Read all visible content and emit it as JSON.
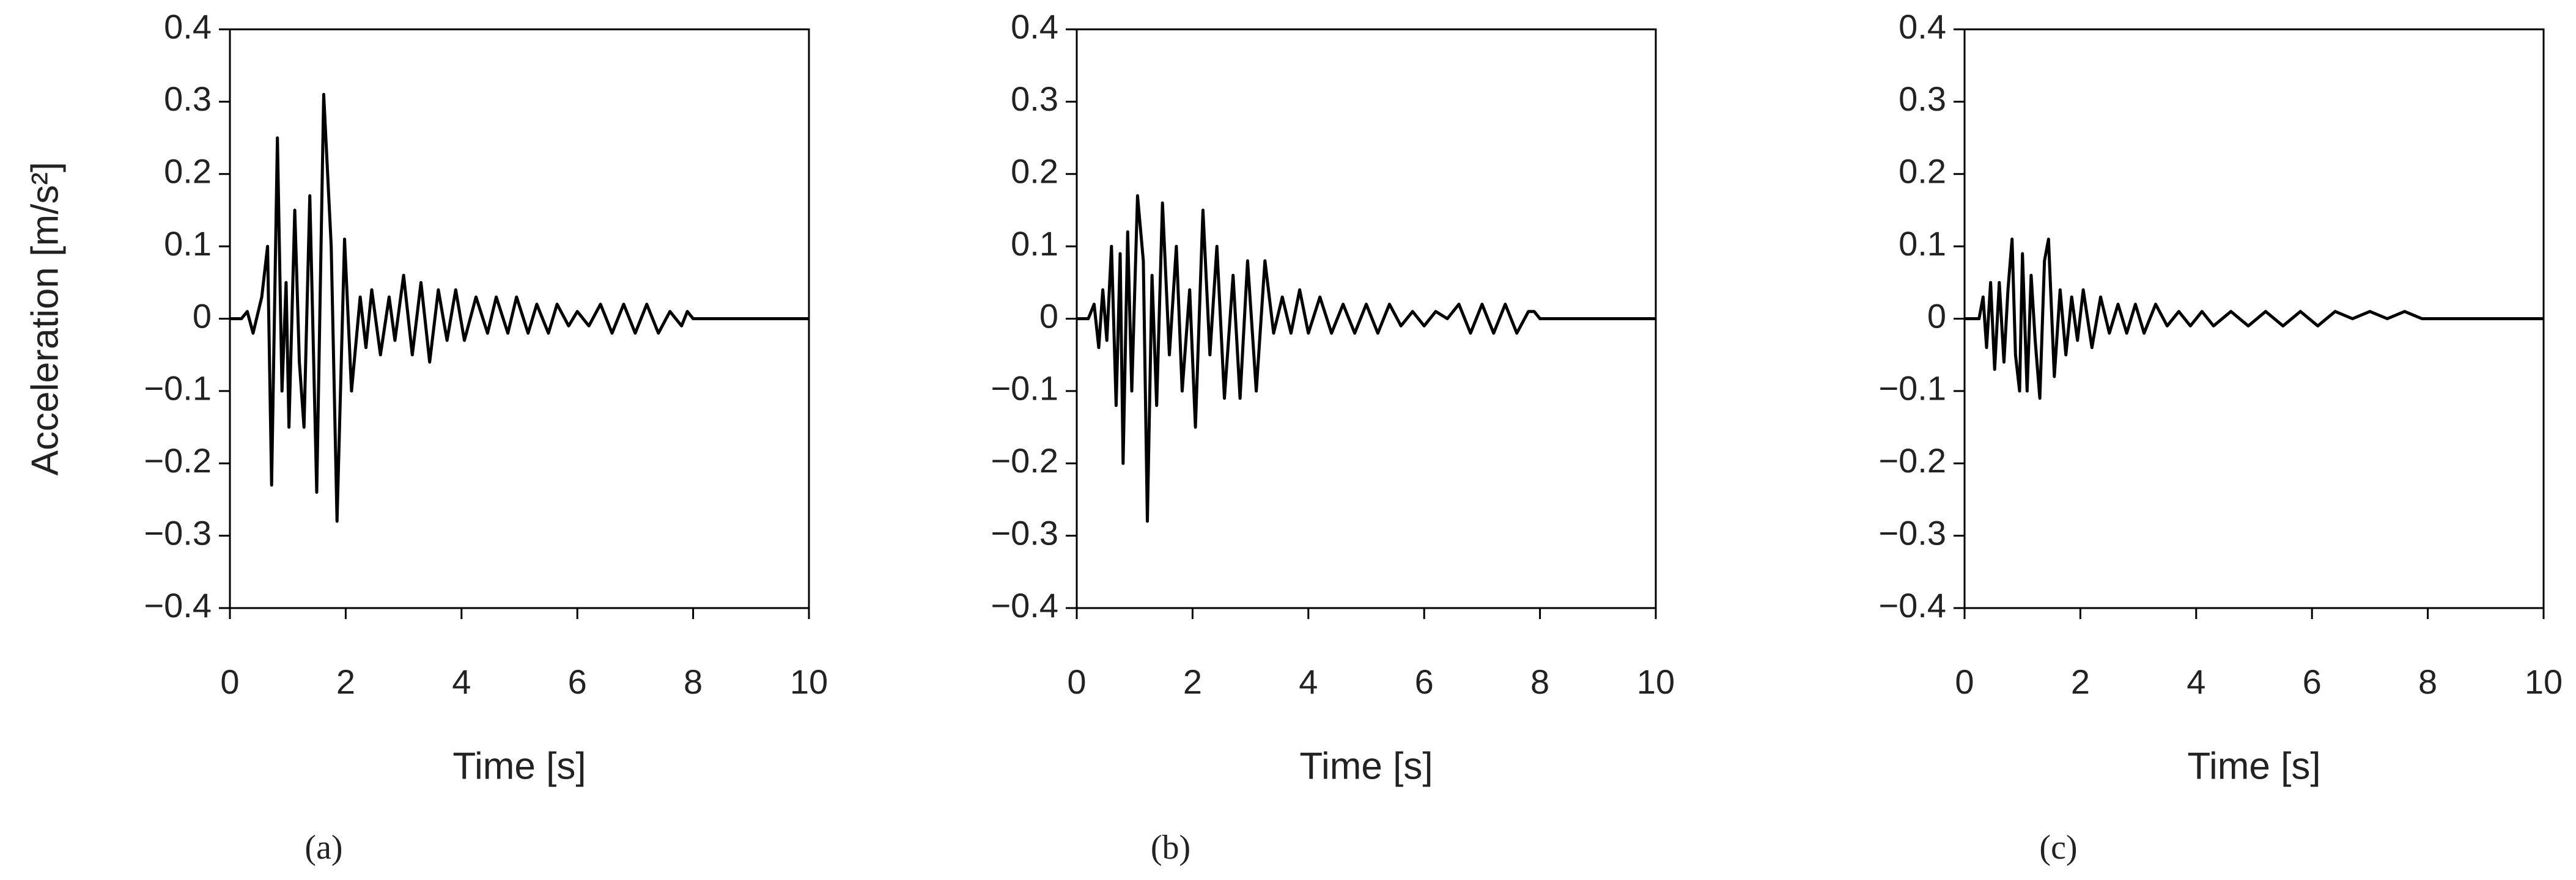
{
  "chart_data": [
    {
      "type": "line",
      "caption": "(a)",
      "xlabel": "Time [s]",
      "ylabel": "Acceleration [m/s²]",
      "xlim": [
        0,
        10
      ],
      "xticks": [
        0,
        2,
        4,
        6,
        8,
        10
      ],
      "ylim": [
        -0.4,
        0.4
      ],
      "yticks": [
        {
          "value": -0.4,
          "label": "−0.4"
        },
        {
          "value": -0.3,
          "label": "−0.3"
        },
        {
          "value": -0.2,
          "label": "−0.2"
        },
        {
          "value": -0.1,
          "label": "−0.1"
        },
        0,
        0.1,
        0.2,
        0.3,
        0.4
      ],
      "series": [
        {
          "color": "#000000",
          "x": [
            0,
            0.2,
            0.3,
            0.4,
            0.55,
            0.65,
            0.72,
            0.82,
            0.9,
            0.97,
            1.02,
            1.12,
            1.2,
            1.28,
            1.38,
            1.5,
            1.62,
            1.75,
            1.85,
            1.98,
            2.1,
            2.25,
            2.35,
            2.45,
            2.6,
            2.75,
            2.85,
            3.0,
            3.15,
            3.3,
            3.45,
            3.6,
            3.75,
            3.9,
            4.05,
            4.25,
            4.45,
            4.6,
            4.8,
            4.95,
            5.15,
            5.3,
            5.5,
            5.65,
            5.85,
            6.0,
            6.2,
            6.4,
            6.6,
            6.8,
            7.0,
            7.2,
            7.4,
            7.6,
            7.8,
            7.9,
            8.0,
            10
          ],
          "values": [
            0,
            0,
            0.01,
            -0.02,
            0.03,
            0.1,
            -0.23,
            0.25,
            -0.1,
            0.05,
            -0.15,
            0.15,
            -0.06,
            -0.15,
            0.17,
            -0.24,
            0.31,
            0.1,
            -0.28,
            0.11,
            -0.1,
            0.03,
            -0.04,
            0.04,
            -0.05,
            0.03,
            -0.03,
            0.06,
            -0.05,
            0.05,
            -0.06,
            0.04,
            -0.03,
            0.04,
            -0.03,
            0.03,
            -0.02,
            0.03,
            -0.02,
            0.03,
            -0.02,
            0.02,
            -0.02,
            0.02,
            -0.01,
            0.01,
            -0.01,
            0.02,
            -0.02,
            0.02,
            -0.02,
            0.02,
            -0.02,
            0.01,
            -0.01,
            0.01,
            0,
            0
          ]
        }
      ]
    },
    {
      "type": "line",
      "caption": "(b)",
      "xlabel": "Time [s]",
      "xlim": [
        0,
        10
      ],
      "xticks": [
        0,
        2,
        4,
        6,
        8,
        10
      ],
      "ylim": [
        -0.4,
        0.4
      ],
      "yticks": [
        {
          "value": -0.4,
          "label": "−0.4"
        },
        {
          "value": -0.3,
          "label": "−0.3"
        },
        {
          "value": -0.2,
          "label": "−0.2"
        },
        {
          "value": -0.1,
          "label": "−0.1"
        },
        0,
        0.1,
        0.2,
        0.3,
        0.4
      ],
      "series": [
        {
          "color": "#000000",
          "x": [
            0,
            0.2,
            0.3,
            0.38,
            0.45,
            0.52,
            0.6,
            0.68,
            0.75,
            0.8,
            0.88,
            0.95,
            1.05,
            1.15,
            1.22,
            1.3,
            1.38,
            1.48,
            1.6,
            1.72,
            1.82,
            1.95,
            2.05,
            2.18,
            2.3,
            2.42,
            2.55,
            2.7,
            2.82,
            2.95,
            3.1,
            3.25,
            3.4,
            3.55,
            3.7,
            3.85,
            4.0,
            4.2,
            4.4,
            4.6,
            4.8,
            5.0,
            5.2,
            5.4,
            5.6,
            5.8,
            6.0,
            6.2,
            6.4,
            6.6,
            6.8,
            7.0,
            7.2,
            7.4,
            7.6,
            7.8,
            7.9,
            8.0,
            10
          ],
          "values": [
            0,
            0,
            0.02,
            -0.04,
            0.04,
            -0.03,
            0.1,
            -0.12,
            0.09,
            -0.2,
            0.12,
            -0.1,
            0.17,
            0.08,
            -0.28,
            0.06,
            -0.12,
            0.16,
            -0.05,
            0.1,
            -0.1,
            0.04,
            -0.15,
            0.15,
            -0.05,
            0.1,
            -0.11,
            0.06,
            -0.11,
            0.08,
            -0.1,
            0.08,
            -0.02,
            0.03,
            -0.02,
            0.04,
            -0.02,
            0.03,
            -0.02,
            0.02,
            -0.02,
            0.02,
            -0.02,
            0.02,
            -0.01,
            0.01,
            -0.01,
            0.01,
            0,
            0.02,
            -0.02,
            0.02,
            -0.02,
            0.02,
            -0.02,
            0.01,
            0.01,
            0,
            0
          ]
        }
      ]
    },
    {
      "type": "line",
      "caption": "(c)",
      "xlabel": "Time [s]",
      "xlim": [
        0,
        10
      ],
      "xticks": [
        0,
        2,
        4,
        6,
        8,
        10
      ],
      "ylim": [
        -0.4,
        0.4
      ],
      "yticks": [
        {
          "value": -0.4,
          "label": "−0.4"
        },
        {
          "value": -0.3,
          "label": "−0.3"
        },
        {
          "value": -0.2,
          "label": "−0.2"
        },
        {
          "value": -0.1,
          "label": "−0.1"
        },
        0,
        0.1,
        0.2,
        0.3,
        0.4
      ],
      "series": [
        {
          "color": "#000000",
          "x": [
            0,
            0.25,
            0.32,
            0.38,
            0.45,
            0.52,
            0.6,
            0.68,
            0.75,
            0.82,
            0.88,
            0.95,
            1.0,
            1.08,
            1.15,
            1.22,
            1.3,
            1.38,
            1.45,
            1.55,
            1.65,
            1.75,
            1.85,
            1.95,
            2.05,
            2.2,
            2.35,
            2.5,
            2.65,
            2.8,
            2.95,
            3.1,
            3.3,
            3.5,
            3.7,
            3.9,
            4.1,
            4.3,
            4.6,
            4.9,
            5.2,
            5.5,
            5.8,
            6.1,
            6.4,
            6.7,
            7.0,
            7.3,
            7.6,
            7.9,
            8.0,
            10
          ],
          "values": [
            0,
            0,
            0.03,
            -0.04,
            0.05,
            -0.07,
            0.05,
            -0.06,
            0.04,
            0.11,
            -0.05,
            -0.1,
            0.09,
            -0.1,
            0.06,
            -0.03,
            -0.11,
            0.08,
            0.11,
            -0.08,
            0.04,
            -0.05,
            0.03,
            -0.03,
            0.04,
            -0.04,
            0.03,
            -0.02,
            0.02,
            -0.02,
            0.02,
            -0.02,
            0.02,
            -0.01,
            0.01,
            -0.01,
            0.01,
            -0.01,
            0.01,
            -0.01,
            0.01,
            -0.01,
            0.01,
            -0.01,
            0.01,
            0,
            0.01,
            0,
            0.01,
            0,
            0,
            0
          ]
        }
      ]
    }
  ]
}
